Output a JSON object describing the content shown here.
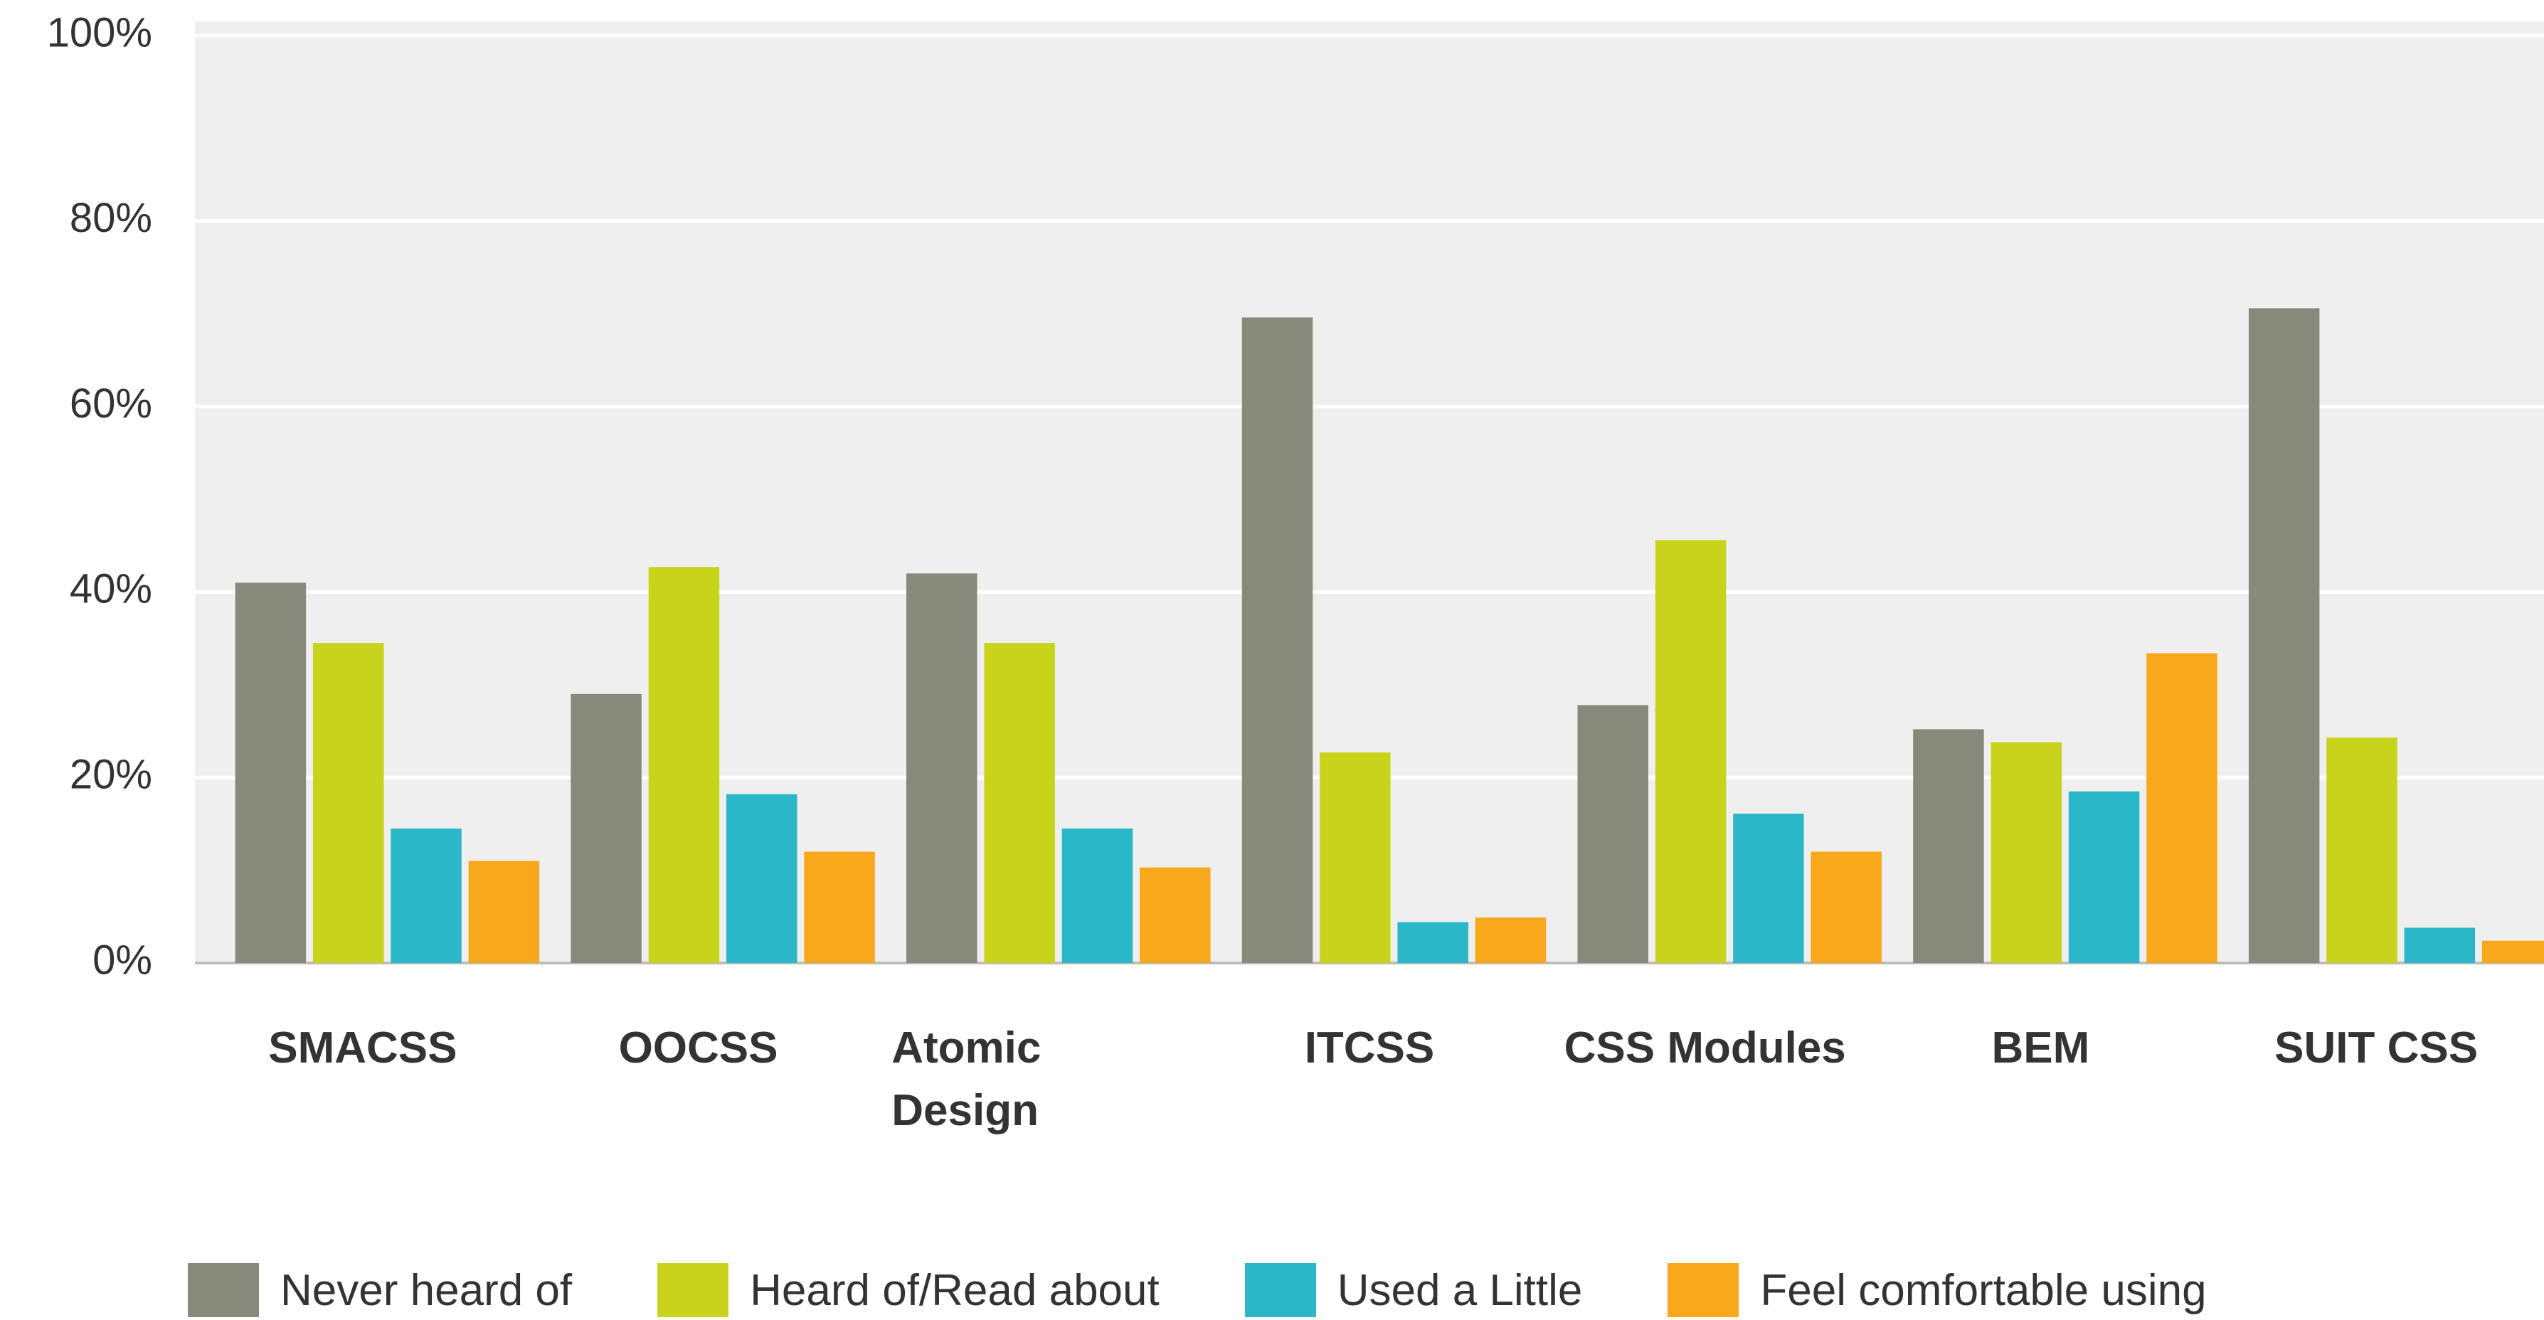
{
  "chart_data": {
    "type": "bar",
    "categories": [
      "SMACSS",
      "OOCSS",
      "Atomic Design",
      "ITCSS",
      "CSS Modules",
      "BEM",
      "SUIT CSS"
    ],
    "series": [
      {
        "name": "Never heard of",
        "color": "#878a7a",
        "values": [
          41,
          29,
          42,
          69.6,
          27.8,
          25.2,
          70.6
        ]
      },
      {
        "name": "Heard of/Read about",
        "color": "#c8d41c",
        "values": [
          34.5,
          42.7,
          34.5,
          22.7,
          45.6,
          23.8,
          24.3
        ]
      },
      {
        "name": "Used a Little",
        "color": "#2ab7c8",
        "values": [
          14.5,
          18.2,
          14.5,
          4.4,
          16.1,
          18.5,
          3.8
        ]
      },
      {
        "name": "Feel comfortable using",
        "color": "#f9a81b",
        "values": [
          11,
          12,
          10.3,
          4.9,
          12,
          33.4,
          2.4
        ]
      }
    ],
    "ylim": [
      0,
      100
    ],
    "yticks": [
      {
        "value": 0,
        "label": "0%"
      },
      {
        "value": 20,
        "label": "20%"
      },
      {
        "value": 40,
        "label": "40%"
      },
      {
        "value": 60,
        "label": "60%"
      },
      {
        "value": 80,
        "label": "80%"
      },
      {
        "value": 100,
        "label": "100%"
      }
    ],
    "grid": true,
    "legend": "bottom"
  }
}
